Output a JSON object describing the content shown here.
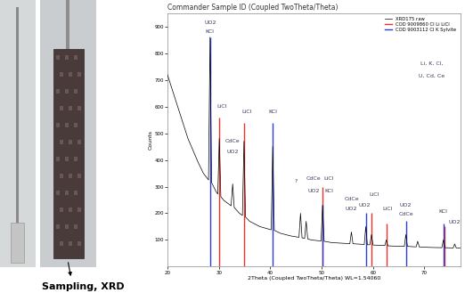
{
  "chart_data": {
    "type": "line",
    "title": "Commander Sample ID (Coupled TwoTheta/Theta)",
    "x_label": "2Theta (Coupled TwoTheta/Theta) WL=1.54060",
    "y_label": "Counts",
    "xlim": [
      20,
      77
    ],
    "xticks": [
      20,
      30,
      40,
      50,
      60,
      70
    ],
    "ylim": [
      0,
      950
    ],
    "yticks": [
      100,
      200,
      300,
      400,
      500,
      600,
      700,
      800,
      900
    ],
    "legend": "upper right",
    "series": [
      {
        "name": "XRD175 raw",
        "color": "#000000",
        "type": "line",
        "x": [
          20,
          21,
          22,
          23,
          24,
          25,
          26,
          27,
          28.0,
          28.3,
          28.6,
          29.5,
          29.8,
          30.1,
          30.4,
          31,
          32.4,
          32.7,
          33.0,
          34,
          34.6,
          34.9,
          35.2,
          36,
          38,
          40.2,
          40.5,
          40.8,
          42,
          44,
          45.6,
          45.9,
          46.2,
          46.7,
          47.0,
          47.3,
          48,
          49.9,
          50.2,
          50.5,
          52,
          55.5,
          55.8,
          56.1,
          58.3,
          58.6,
          58.9,
          59.4,
          59.7,
          60.0,
          62.3,
          62.6,
          62.9,
          64,
          66.1,
          66.4,
          66.7,
          68.4,
          68.7,
          69.0,
          71,
          73.4,
          73.7,
          74.0,
          75.6,
          75.9,
          76.2,
          77
        ],
        "values": [
          720,
          660,
          600,
          540,
          480,
          435,
          390,
          350,
          325,
          860,
          315,
          280,
          272,
          480,
          262,
          248,
          228,
          310,
          222,
          200,
          192,
          470,
          186,
          170,
          150,
          138,
          450,
          136,
          125,
          115,
          110,
          200,
          108,
          106,
          170,
          104,
          100,
          96,
          230,
          95,
          90,
          86,
          130,
          86,
          83,
          150,
          82,
          82,
          120,
          81,
          79,
          100,
          78,
          77,
          76,
          120,
          76,
          74,
          95,
          74,
          72,
          71,
          100,
          71,
          70,
          85,
          70,
          70
        ]
      },
      {
        "name": "COD 9009860 Cl Li LiCl",
        "color": "#e8322a",
        "type": "stick",
        "x": [
          30.1,
          34.9,
          50.2,
          59.7,
          62.6,
          73.9
        ],
        "values": [
          560,
          540,
          300,
          200,
          160,
          150
        ]
      },
      {
        "name": "COD 9003112 Cl K Sylvite",
        "color": "#2a3fd6",
        "type": "stick",
        "x": [
          28.35,
          40.5,
          50.2,
          58.6,
          66.4,
          73.7
        ],
        "values": [
          860,
          540,
          230,
          200,
          170,
          160
        ]
      }
    ],
    "annotations": [
      {
        "text": "UO2",
        "x": 28.3,
        "y": 915
      },
      {
        "text": "KCl",
        "x": 28.3,
        "y": 880
      },
      {
        "text": "LiCl",
        "x": 30.6,
        "y": 600
      },
      {
        "text": "CdCe",
        "x": 32.7,
        "y": 470
      },
      {
        "text": "UO2",
        "x": 32.7,
        "y": 430
      },
      {
        "text": "LiCl",
        "x": 35.4,
        "y": 580
      },
      {
        "text": "KCl",
        "x": 40.5,
        "y": 580
      },
      {
        "text": "?",
        "x": 45.0,
        "y": 320
      },
      {
        "text": "CdCe",
        "x": 48.4,
        "y": 330
      },
      {
        "text": "LiCl",
        "x": 51.4,
        "y": 330
      },
      {
        "text": "UO2",
        "x": 48.4,
        "y": 285
      },
      {
        "text": "KCl",
        "x": 51.4,
        "y": 285
      },
      {
        "text": "CdCe",
        "x": 55.8,
        "y": 255
      },
      {
        "text": "UO2",
        "x": 55.8,
        "y": 215
      },
      {
        "text": "LiCl",
        "x": 60.2,
        "y": 270
      },
      {
        "text": "UO2",
        "x": 58.4,
        "y": 230
      },
      {
        "text": "LiCl",
        "x": 62.9,
        "y": 215
      },
      {
        "text": "UO2",
        "x": 66.4,
        "y": 230
      },
      {
        "text": "CdCe",
        "x": 66.4,
        "y": 195
      },
      {
        "text": "KCl",
        "x": 73.7,
        "y": 205
      },
      {
        "text": "UO2",
        "x": 75.9,
        "y": 165
      },
      {
        "text": "Li, K, Cl,",
        "x": 71.5,
        "y": 760
      },
      {
        "text": "U, Cd, Ce",
        "x": 71.5,
        "y": 715
      }
    ]
  },
  "photos": {
    "caption": "Sampling, XRD"
  }
}
